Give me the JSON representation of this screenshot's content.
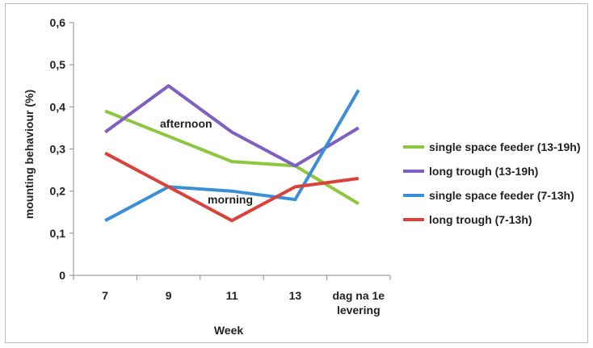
{
  "chart_data": {
    "type": "line",
    "categories": [
      "7",
      "9",
      "11",
      "13",
      "dag na 1e levering"
    ],
    "category_lines": [
      [
        "7"
      ],
      [
        "9"
      ],
      [
        "11"
      ],
      [
        "13"
      ],
      [
        "dag na 1e",
        "levering"
      ]
    ],
    "xlabel": "Week",
    "ylabel": "mounting behaviour (%)",
    "ylim": [
      0,
      0.6
    ],
    "yticks": [
      0,
      0.1,
      0.2,
      0.3,
      0.4,
      0.5,
      0.6
    ],
    "ytick_labels": [
      "0",
      "0,1",
      "0,2",
      "0,3",
      "0,4",
      "0,5",
      "0,6"
    ],
    "grid": false,
    "legend_position": "right",
    "annotations": [
      "afternoon",
      "morning"
    ],
    "series": [
      {
        "name": "single space feeder (13-19h)",
        "color": "#8dc63f",
        "values": [
          0.39,
          0.33,
          0.27,
          0.26,
          0.17
        ]
      },
      {
        "name": "long trough (13-19h)",
        "color": "#7f5fbf",
        "values": [
          0.34,
          0.45,
          0.34,
          0.26,
          0.35
        ]
      },
      {
        "name": "single space feeder (7-13h)",
        "color": "#3b8fd6",
        "values": [
          0.13,
          0.21,
          0.2,
          0.18,
          0.44
        ]
      },
      {
        "name": "long trough (7-13h)",
        "color": "#d9413b",
        "values": [
          0.29,
          0.21,
          0.13,
          0.21,
          0.23
        ]
      }
    ]
  }
}
